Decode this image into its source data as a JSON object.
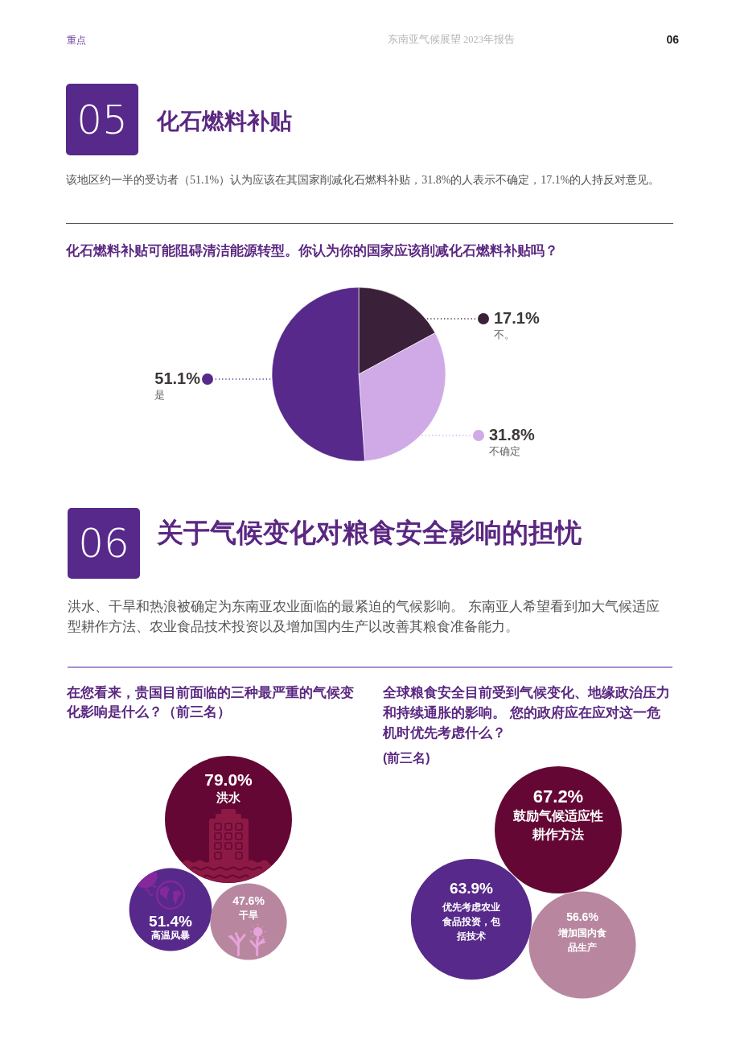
{
  "chart_data": [
    {
      "type": "pie",
      "title": "化石燃料补贴可能阻碍清洁能源转型。你认为你的国家应该削减化石燃料补贴吗？",
      "categories": [
        "不。",
        "不确定",
        "是"
      ],
      "values": [
        17.1,
        31.8,
        51.1
      ],
      "colors": [
        "#3b2039",
        "#d0aae6",
        "#57298a"
      ],
      "value_labels": [
        "17.1%",
        "31.8%",
        "51.1%"
      ],
      "annotations": [
        "重点",
        "东南亚气候展望 2023年报告",
        "06",
        "05",
        "化石燃料补贴",
        "该地区约一半的受访者（51.1%）认为应该在其国家削减化石燃料补贴，31.8%的人表示不确定，17.1%的人持反对意见。"
      ]
    },
    {
      "type": "other",
      "title": "在您看来，贵国目前面临的三种最严重的气候变化影响是什么？（前三名）",
      "categories": [
        "洪水",
        "高温风暴",
        "干旱"
      ],
      "values": [
        79.0,
        51.4,
        47.6
      ],
      "colors": [
        "#650735",
        "#57298a",
        "#b8879f"
      ],
      "value_labels": [
        "79.0%",
        "51.4%",
        "47.6%"
      ],
      "annotations": [
        "06",
        "关于气候变化对粮食安全影响的担忧",
        "洪水、干旱和热浪被确定为东南亚农业面临的最紧迫的气候影响。 东南亚人希望看到加大气候适应型耕作方法、农业食品技术投资以及增加国内生产以改善其粮食准备能力。"
      ]
    },
    {
      "type": "other",
      "title": "全球粮食安全目前受到气候变化、地缘政治压力和持续通胀的影响。 您的政府应在应对这一危机时优先考虑什么？",
      "subtitle": "(前三名)",
      "categories": [
        "鼓励气候适应性耕作方法",
        "优先考虑农业食品投资，包括技术",
        "增加国内食品生产"
      ],
      "values": [
        67.2,
        63.9,
        56.6
      ],
      "colors": [
        "#650735",
        "#57298a",
        "#b8879f"
      ],
      "value_labels": [
        "67.2%",
        "63.9%",
        "56.6%"
      ]
    }
  ]
}
